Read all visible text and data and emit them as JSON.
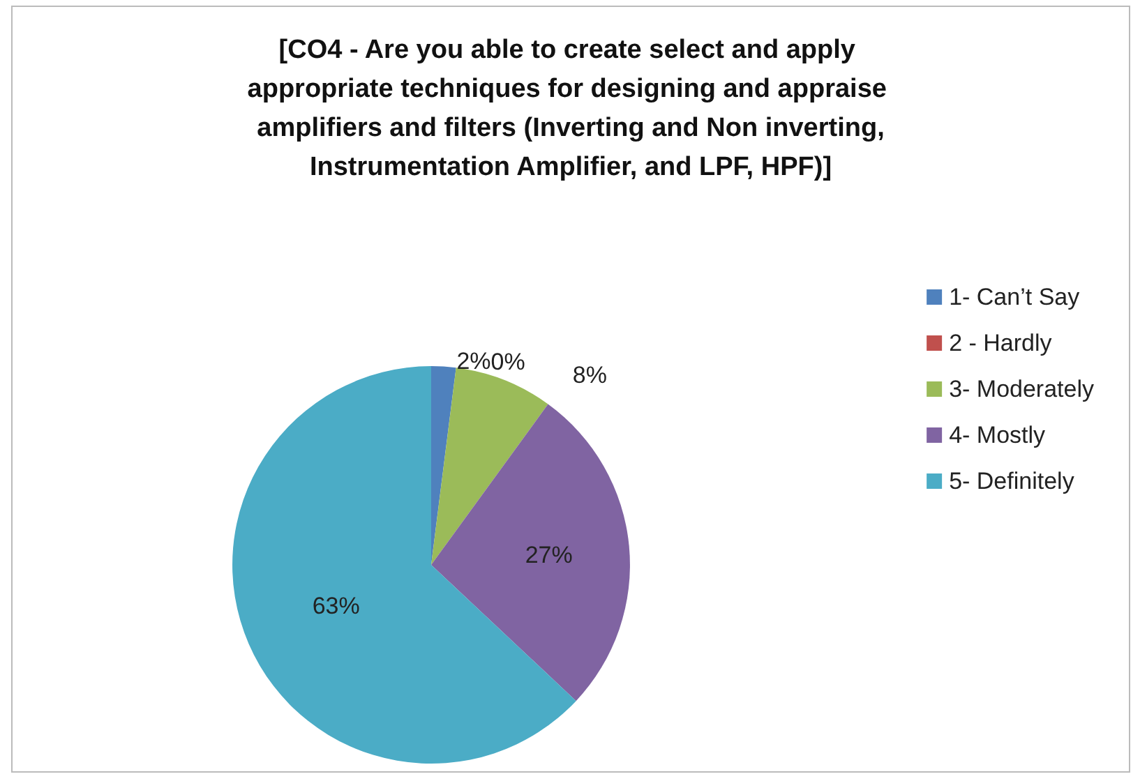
{
  "chart_data": {
    "type": "pie",
    "title": "[CO4 - Are you able to create select and apply appropriate techniques for designing and appraise amplifiers and filters (Inverting and Non inverting,Instrumentation Amplifier, and LPF, HPF)]",
    "categories": [
      "1- Can’t Say",
      "2 - Hardly",
      "3- Moderately",
      "4- Mostly",
      "5- Definitely"
    ],
    "values": [
      2,
      0,
      8,
      27,
      63
    ],
    "colors": [
      "#4f81bd",
      "#c0504d",
      "#9bbb59",
      "#8064a2",
      "#4bacc6"
    ],
    "value_labels": [
      "2%",
      "0%",
      "8%",
      "27%",
      "63%"
    ],
    "legend": "right"
  }
}
